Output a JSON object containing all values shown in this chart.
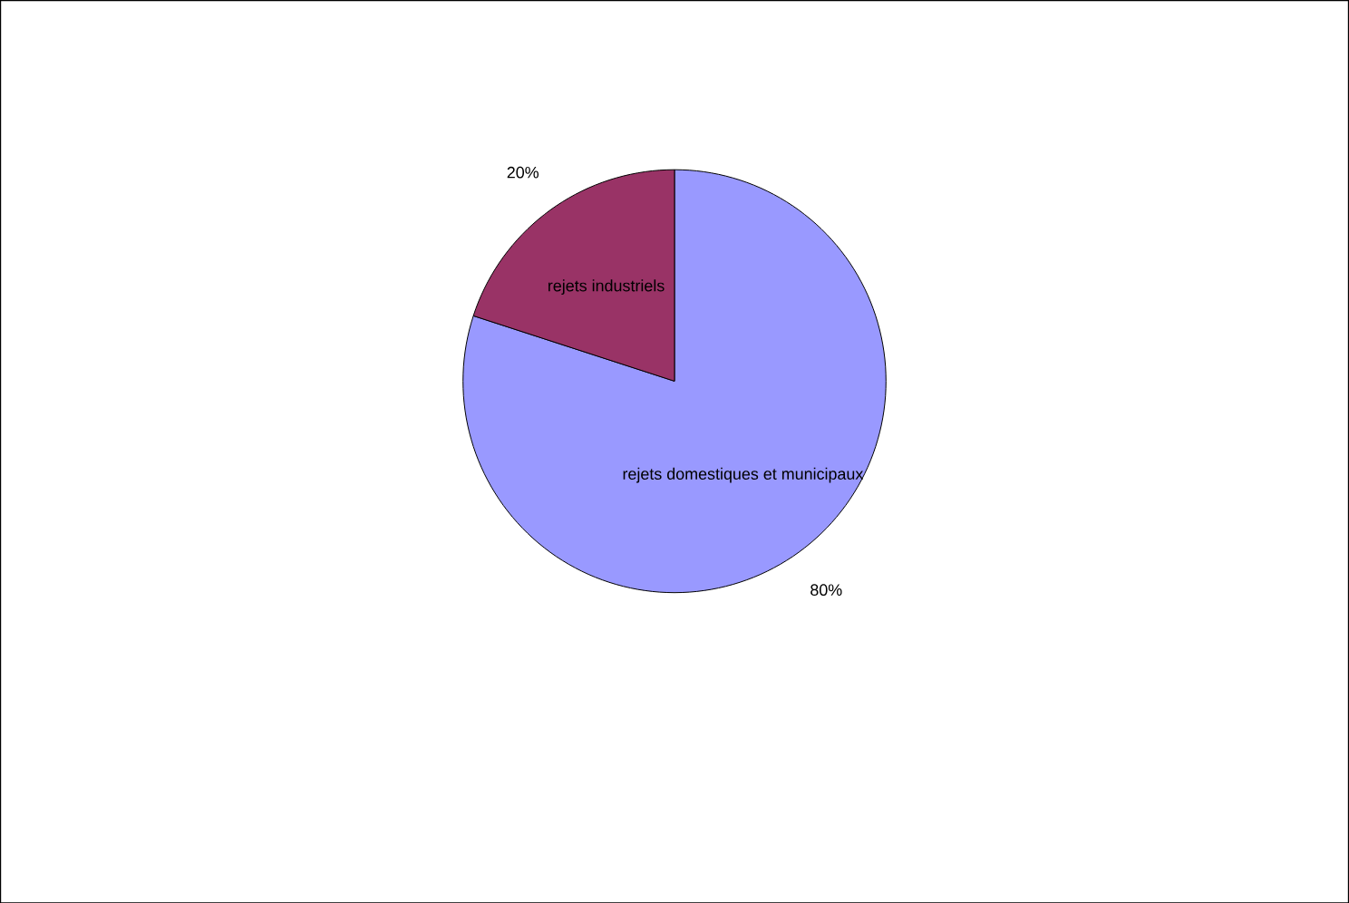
{
  "chart_data": {
    "type": "pie",
    "categories": [
      "rejets domestiques et municipaux",
      "rejets industriels"
    ],
    "values": [
      80,
      20
    ],
    "colors": [
      "#9999ff",
      "#993366"
    ],
    "value_labels": [
      "80%",
      "20%"
    ]
  }
}
